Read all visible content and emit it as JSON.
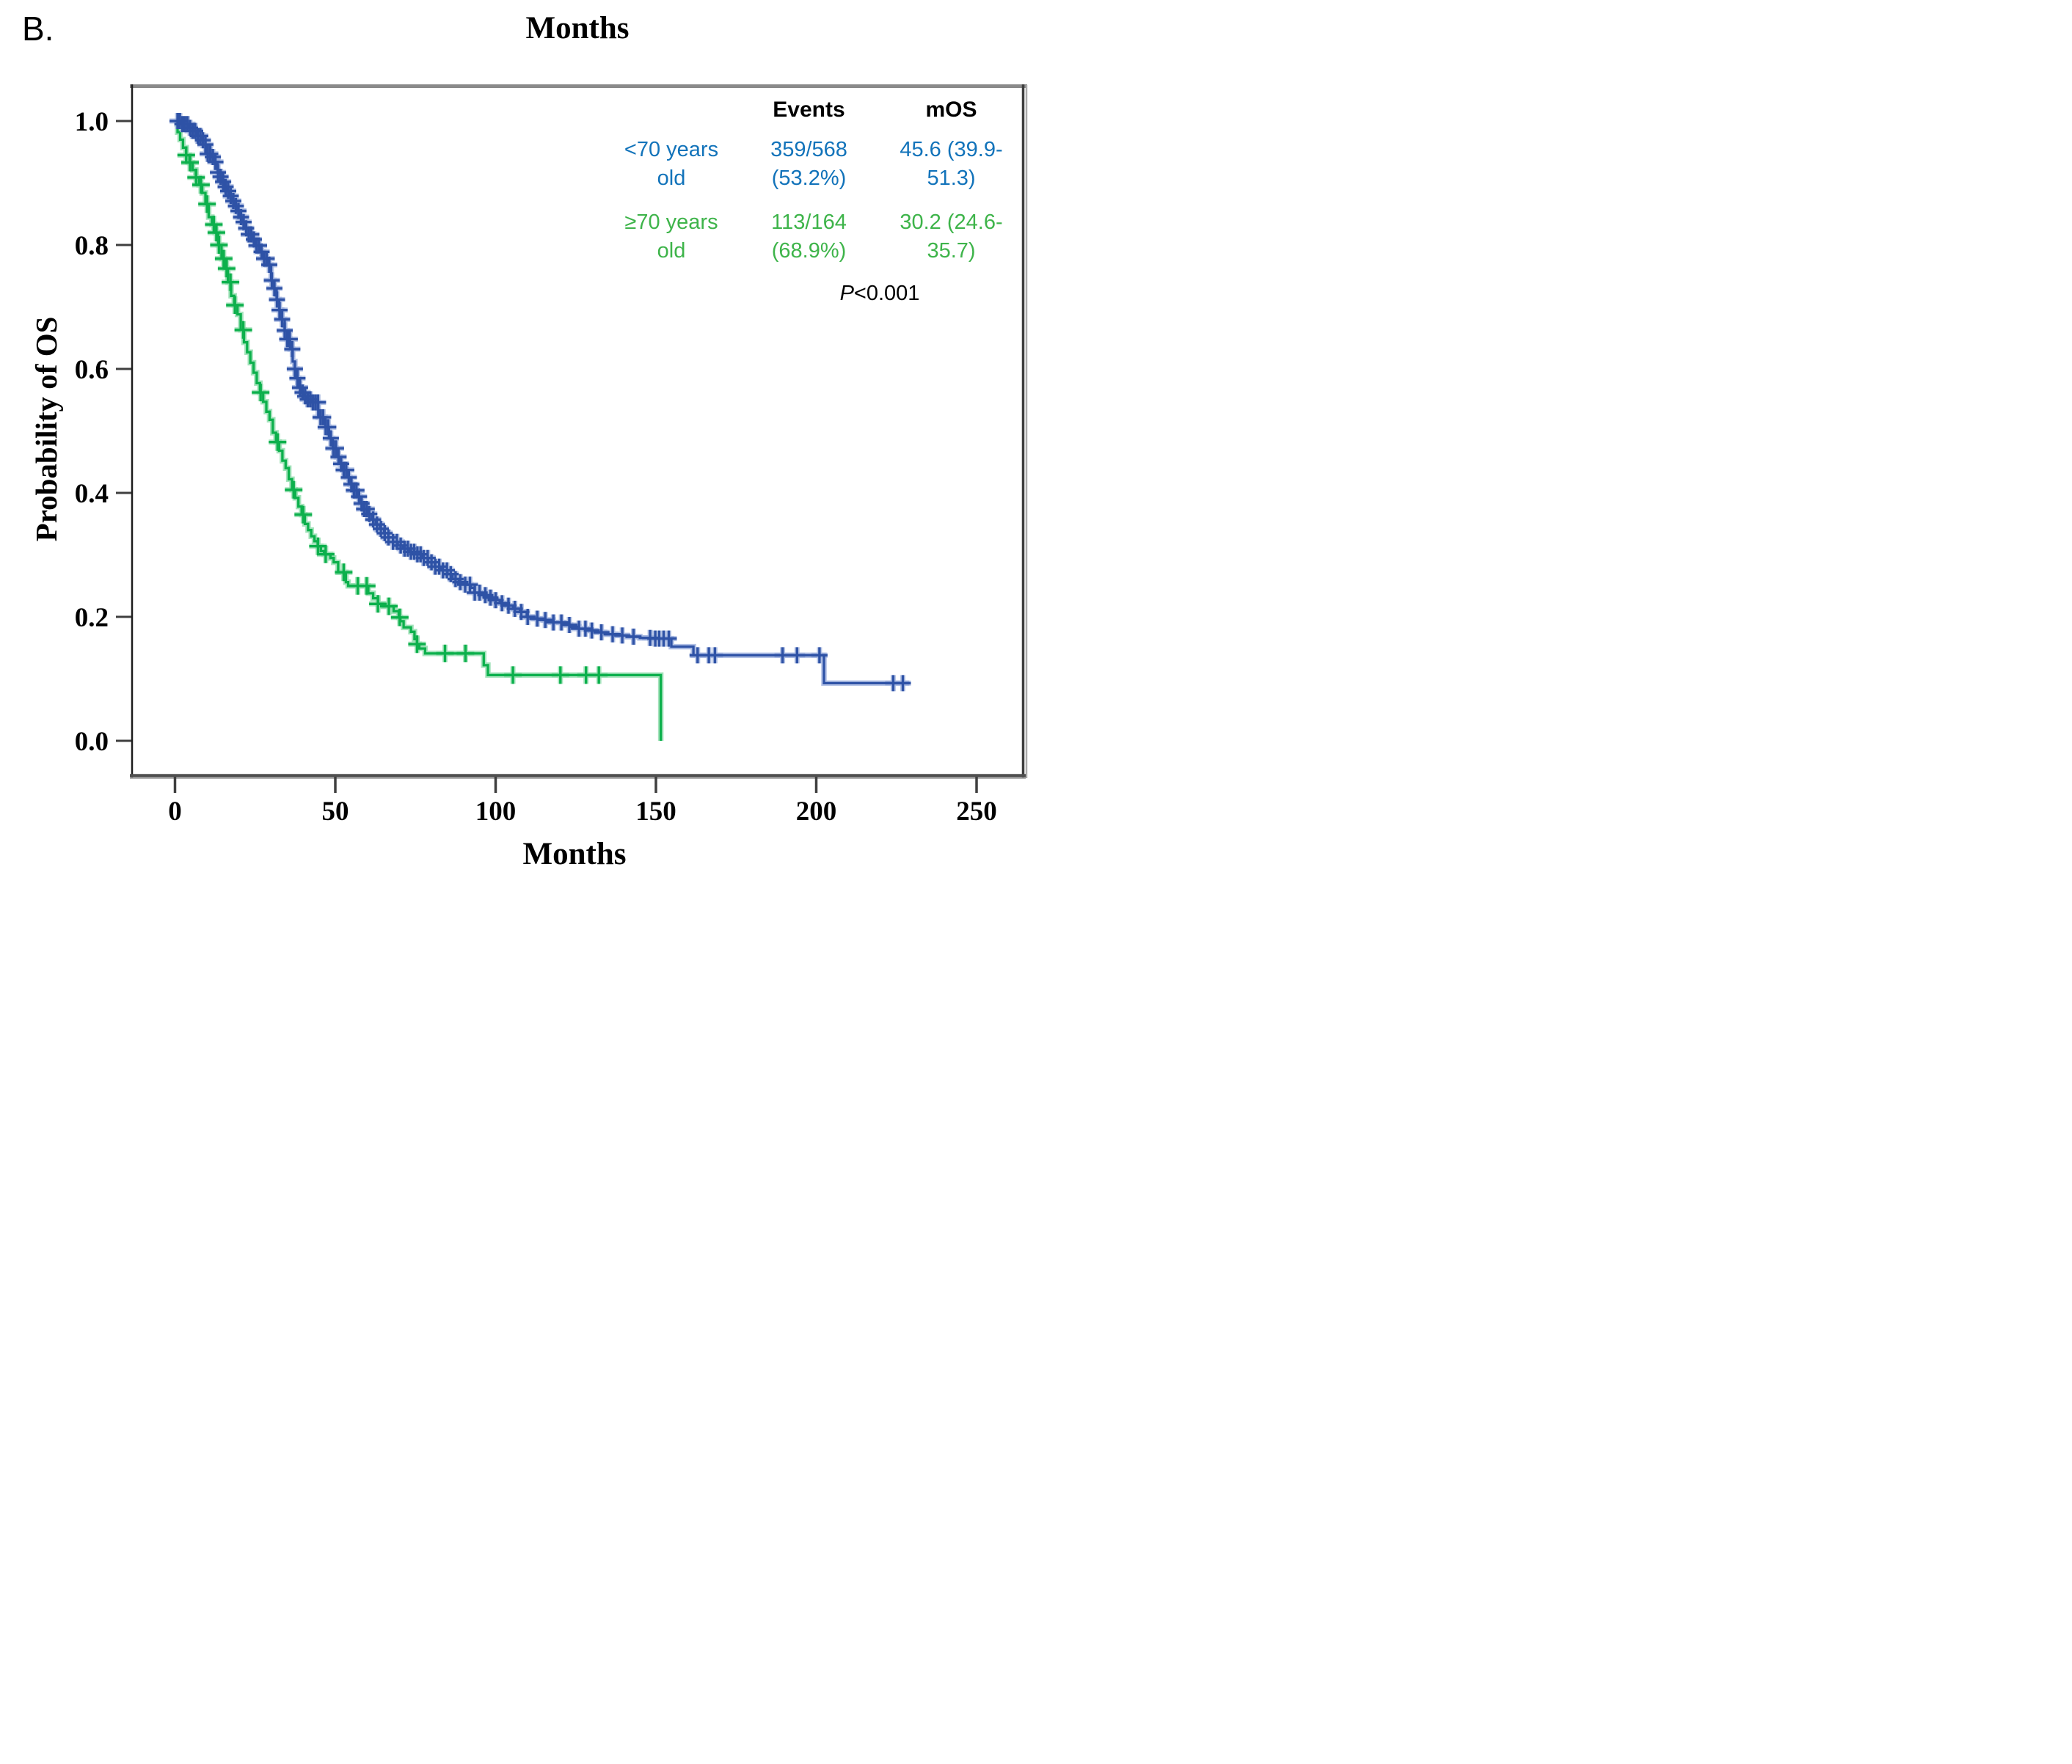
{
  "page": {
    "panel_label": "B.",
    "top_title": "Months",
    "x_axis_label": "Months",
    "y_axis_label": "Probability of OS"
  },
  "legend": {
    "col_events": "Events",
    "col_mos": "mOS",
    "rows": [
      {
        "label_l1": "<70 years",
        "label_l2": "old",
        "events_l1": "359/568",
        "events_l2": "(53.2%)",
        "mos_l1": "45.6 (39.9-",
        "mos_l2": "51.3)",
        "color": "#1273ba"
      },
      {
        "label_l1": "≥70 years",
        "label_l2": "old",
        "events_l1": "113/164",
        "events_l2": "(68.9%)",
        "mos_l1": "30.2 (24.6-",
        "mos_l2": "35.7)",
        "color": "#3eb44a"
      }
    ],
    "p_label": "P",
    "p_value": "<0.001"
  },
  "chart_data": {
    "type": "line",
    "subtype": "kaplan-meier-step",
    "title": "Months",
    "xlabel": "Months",
    "ylabel": "Probability of OS",
    "xlim": [
      0,
      264
    ],
    "ylim": [
      0,
      1.06
    ],
    "xticks": [
      0,
      50,
      100,
      150,
      200,
      250
    ],
    "yticks": [
      0.0,
      0.2,
      0.4,
      0.6,
      0.8,
      1.0
    ],
    "grid": false,
    "legend_position": "inside-top-right",
    "p_value": "P<0.001",
    "series": [
      {
        "name": "≥70 years old",
        "events": "113/164 (68.9%)",
        "median_os": "30.2 (24.6-35.7)",
        "line_color": "#0cb04c",
        "halo_color": "#8fdcab",
        "steps": [
          [
            0,
            1.0
          ],
          [
            0.8,
            0.982
          ],
          [
            1.6,
            0.97
          ],
          [
            2.5,
            0.957
          ],
          [
            3.5,
            0.945
          ],
          [
            4.5,
            0.933
          ],
          [
            5.5,
            0.921
          ],
          [
            6.5,
            0.909
          ],
          [
            7.5,
            0.897
          ],
          [
            8.5,
            0.884
          ],
          [
            9.5,
            0.866
          ],
          [
            10.5,
            0.845
          ],
          [
            11.5,
            0.833
          ],
          [
            12.5,
            0.82
          ],
          [
            13.5,
            0.8
          ],
          [
            14.5,
            0.778
          ],
          [
            15.5,
            0.762
          ],
          [
            16.5,
            0.74
          ],
          [
            17.5,
            0.718
          ],
          [
            18.5,
            0.703
          ],
          [
            19.5,
            0.688
          ],
          [
            20.5,
            0.663
          ],
          [
            21.5,
            0.643
          ],
          [
            22.5,
            0.627
          ],
          [
            23.5,
            0.61
          ],
          [
            24.5,
            0.594
          ],
          [
            25.5,
            0.577
          ],
          [
            26.5,
            0.562
          ],
          [
            27.5,
            0.547
          ],
          [
            28.5,
            0.531
          ],
          [
            29.5,
            0.518
          ],
          [
            30.5,
            0.497
          ],
          [
            31.5,
            0.482
          ],
          [
            32.5,
            0.468
          ],
          [
            33.5,
            0.452
          ],
          [
            34.5,
            0.44
          ],
          [
            35.5,
            0.422
          ],
          [
            36.5,
            0.405
          ],
          [
            37.5,
            0.392
          ],
          [
            38.5,
            0.378
          ],
          [
            39.5,
            0.365
          ],
          [
            40.5,
            0.35
          ],
          [
            41.5,
            0.34
          ],
          [
            42.5,
            0.33
          ],
          [
            43.5,
            0.322
          ],
          [
            44.5,
            0.314
          ],
          [
            45.5,
            0.306
          ],
          [
            46.5,
            0.301
          ],
          [
            48.5,
            0.295
          ],
          [
            49.5,
            0.288
          ],
          [
            50.9,
            0.272
          ],
          [
            53.3,
            0.256
          ],
          [
            54,
            0.25
          ],
          [
            60.3,
            0.238
          ],
          [
            61.8,
            0.23
          ],
          [
            63.3,
            0.221
          ],
          [
            65,
            0.217
          ],
          [
            68.2,
            0.209
          ],
          [
            69.8,
            0.199
          ],
          [
            70.3,
            0.193
          ],
          [
            71.3,
            0.183
          ],
          [
            73.6,
            0.176
          ],
          [
            74.7,
            0.164
          ],
          [
            75.5,
            0.156
          ],
          [
            76.2,
            0.149
          ],
          [
            78,
            0.141
          ],
          [
            96.3,
            0.122
          ],
          [
            97.6,
            0.106
          ],
          [
            151.5,
            0.0
          ]
        ],
        "censor_months": [
          3.5,
          4.7,
          6.6,
          8.1,
          10,
          12.1,
          12.9,
          13.7,
          15.2,
          16.1,
          17.3,
          18.7,
          21.3,
          26.7,
          32,
          37,
          40,
          44.6,
          47,
          52.6,
          57,
          59.8,
          63.3,
          66.7,
          70.1,
          75.5,
          84.2,
          90.6,
          105.4,
          120.2,
          128.2,
          132.2
        ]
      },
      {
        "name": "<70 years old",
        "events": "359/568 (53.2%)",
        "median_os": "45.6 (39.9-51.3)",
        "line_color": "#2e52a6",
        "halo_color": "#9fb2de",
        "steps": [
          [
            0,
            1.0
          ],
          [
            2,
            0.995
          ],
          [
            4,
            0.989
          ],
          [
            5.5,
            0.984
          ],
          [
            7,
            0.976
          ],
          [
            8.5,
            0.969
          ],
          [
            9.5,
            0.962
          ],
          [
            10.2,
            0.947
          ],
          [
            11.5,
            0.942
          ],
          [
            12.2,
            0.934
          ],
          [
            13.3,
            0.917
          ],
          [
            14.2,
            0.91
          ],
          [
            14.7,
            0.902
          ],
          [
            15.3,
            0.894
          ],
          [
            16.1,
            0.887
          ],
          [
            16.8,
            0.879
          ],
          [
            17.6,
            0.871
          ],
          [
            18.4,
            0.863
          ],
          [
            19.1,
            0.855
          ],
          [
            19.9,
            0.845
          ],
          [
            20.7,
            0.837
          ],
          [
            21.8,
            0.827
          ],
          [
            23,
            0.817
          ],
          [
            24.1,
            0.809
          ],
          [
            25.2,
            0.799
          ],
          [
            26.4,
            0.789
          ],
          [
            27.5,
            0.778
          ],
          [
            28.7,
            0.768
          ],
          [
            30,
            0.743
          ],
          [
            30.9,
            0.73
          ],
          [
            31.7,
            0.712
          ],
          [
            32.5,
            0.695
          ],
          [
            33.3,
            0.68
          ],
          [
            34.2,
            0.662
          ],
          [
            35,
            0.648
          ],
          [
            35.9,
            0.632
          ],
          [
            36.7,
            0.612
          ],
          [
            37.4,
            0.6
          ],
          [
            38,
            0.585
          ],
          [
            38.6,
            0.57
          ],
          [
            39.2,
            0.562
          ],
          [
            40.1,
            0.556
          ],
          [
            41,
            0.551
          ],
          [
            42.8,
            0.546
          ],
          [
            44.7,
            0.522
          ],
          [
            46.9,
            0.506
          ],
          [
            48,
            0.488
          ],
          [
            49.2,
            0.472
          ],
          [
            50.3,
            0.458
          ],
          [
            51.4,
            0.447
          ],
          [
            52.4,
            0.437
          ],
          [
            53.5,
            0.425
          ],
          [
            54.6,
            0.414
          ],
          [
            55.7,
            0.404
          ],
          [
            56.8,
            0.394
          ],
          [
            57.9,
            0.383
          ],
          [
            59,
            0.374
          ],
          [
            60.2,
            0.366
          ],
          [
            61.4,
            0.357
          ],
          [
            62.6,
            0.349
          ],
          [
            63.9,
            0.342
          ],
          [
            65.2,
            0.335
          ],
          [
            66.5,
            0.328
          ],
          [
            68,
            0.321
          ],
          [
            69.5,
            0.315
          ],
          [
            71.2,
            0.31
          ],
          [
            73,
            0.305
          ],
          [
            75,
            0.301
          ],
          [
            77,
            0.295
          ],
          [
            79,
            0.288
          ],
          [
            81,
            0.281
          ],
          [
            83,
            0.275
          ],
          [
            85,
            0.269
          ],
          [
            86.6,
            0.261
          ],
          [
            88.5,
            0.256
          ],
          [
            90.5,
            0.252
          ],
          [
            92.3,
            0.247
          ],
          [
            93.4,
            0.239
          ],
          [
            95.2,
            0.235
          ],
          [
            97.2,
            0.231
          ],
          [
            99.2,
            0.227
          ],
          [
            101.3,
            0.222
          ],
          [
            103.4,
            0.218
          ],
          [
            105.5,
            0.213
          ],
          [
            107.6,
            0.208
          ],
          [
            109.7,
            0.2
          ],
          [
            112,
            0.197
          ],
          [
            115,
            0.195
          ],
          [
            118,
            0.191
          ],
          [
            121,
            0.187
          ],
          [
            123.4,
            0.184
          ],
          [
            126,
            0.181
          ],
          [
            128.5,
            0.178
          ],
          [
            131,
            0.175
          ],
          [
            134,
            0.172
          ],
          [
            137.5,
            0.17
          ],
          [
            141,
            0.168
          ],
          [
            145,
            0.166
          ],
          [
            149,
            0.165
          ],
          [
            154.8,
            0.152
          ],
          [
            161.7,
            0.138
          ],
          [
            202.4,
            0.093
          ],
          [
            229,
            0.093
          ]
        ],
        "censor_months": [
          0.8,
          1.5,
          2.3,
          3.1,
          3.9,
          4.7,
          5.5,
          6.3,
          7.1,
          7.9,
          8.7,
          9.5,
          10.2,
          11,
          11.8,
          12.6,
          13.4,
          14.2,
          15,
          15.8,
          16.6,
          17.4,
          18.2,
          19,
          19.8,
          20.6,
          21.4,
          22.2,
          23,
          23.8,
          24.6,
          25.4,
          26.2,
          27,
          27.8,
          28.6,
          29.4,
          30.2,
          31,
          31.8,
          32.6,
          33.4,
          34.2,
          35,
          35.8,
          36.6,
          37.4,
          38.2,
          39,
          39.8,
          40.6,
          41.4,
          42.2,
          43,
          43.8,
          44.6,
          45.4,
          46.2,
          47,
          47.8,
          48.6,
          49.4,
          50.2,
          51,
          51.8,
          52.6,
          53.4,
          54.2,
          55,
          55.8,
          56.6,
          57.4,
          58.2,
          59,
          59.8,
          60.6,
          61.8,
          63,
          64.2,
          65.4,
          66.6,
          68,
          69.2,
          70.4,
          71.6,
          72.6,
          73.6,
          74.6,
          75.6,
          76.6,
          77.6,
          78.8,
          80,
          81.2,
          82.4,
          83.6,
          84.8,
          86,
          87.5,
          89,
          90.5,
          92,
          93.5,
          95,
          96.8,
          98.4,
          100,
          102,
          104,
          106,
          108,
          110,
          113,
          115.5,
          118,
          120.5,
          123,
          126,
          128,
          130,
          133,
          136.5,
          139.5,
          143,
          148.2,
          149.8,
          151,
          152.4,
          154,
          163,
          166.5,
          168.4,
          189.5,
          194,
          201,
          224,
          227
        ]
      }
    ]
  },
  "colors": {
    "frame_top": "#8a8a8a",
    "frame_right": "#3e3e3e",
    "frame_right_outer": "#ababab",
    "frame_bottom": "#4f4f4f",
    "frame_bottom_outer": "#9a9a9a",
    "frame_left": "#1c1c1c",
    "tick": "#3f3f3f",
    "legend_blue": "#1273ba",
    "legend_green": "#3eb44a"
  }
}
